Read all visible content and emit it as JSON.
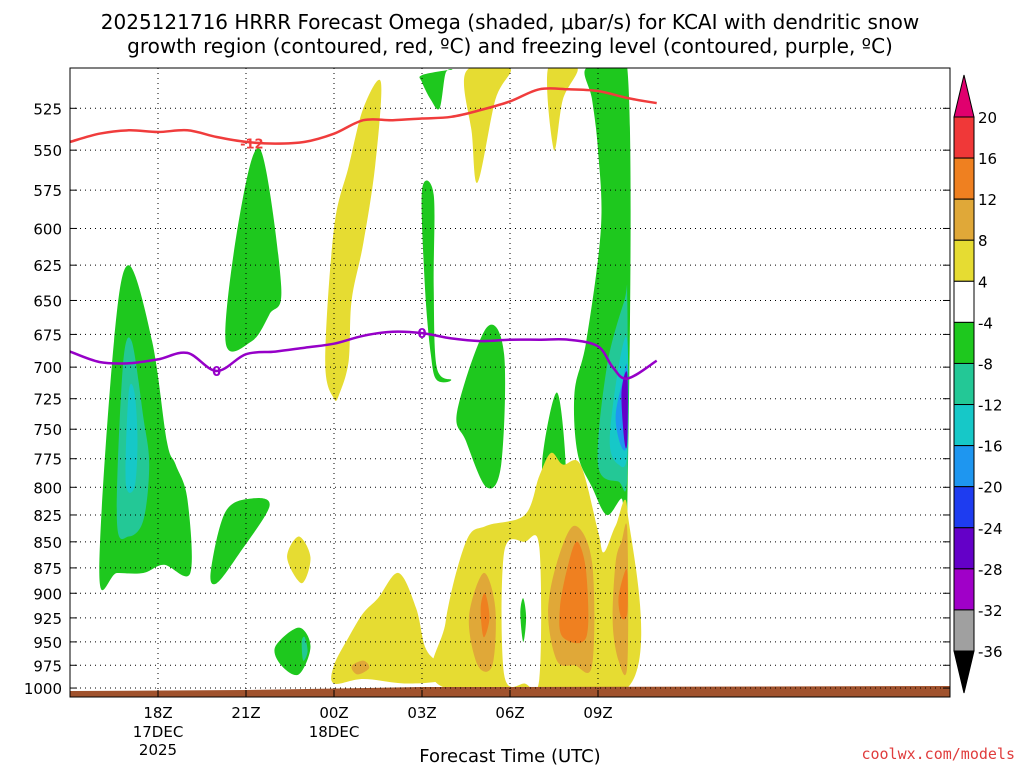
{
  "chart_data": {
    "type": "time-height contour",
    "title_line1": "2025121716 HRRR Forecast Omega (shaded, μbar/s) for KCAI with dendritic snow",
    "title_line2": "growth region (contoured, red, ºC) and freezing level (contoured, purple, ºC)",
    "xlabel": "Forecast Time (UTC)",
    "credit": "coolwx.com/models",
    "xlim_hours": [
      15.0,
      45.0
    ],
    "x_ticks": [
      {
        "hour": 18,
        "label": "18Z",
        "sub1": "17DEC",
        "sub2": "2025"
      },
      {
        "hour": 21,
        "label": "21Z",
        "sub1": "",
        "sub2": ""
      },
      {
        "hour": 24,
        "label": "00Z",
        "sub1": "18DEC",
        "sub2": ""
      },
      {
        "hour": 27,
        "label": "03Z",
        "sub1": "",
        "sub2": ""
      },
      {
        "hour": 30,
        "label": "06Z",
        "sub1": "",
        "sub2": ""
      },
      {
        "hour": 33,
        "label": "09Z",
        "sub1": "",
        "sub2": ""
      }
    ],
    "ylim_mb": [
      1010,
      502
    ],
    "y_ticks": [
      "525",
      "550",
      "575",
      "600",
      "625",
      "650",
      "675",
      "700",
      "725",
      "750",
      "775",
      "800",
      "825",
      "850",
      "875",
      "900",
      "925",
      "950",
      "975",
      "1000"
    ],
    "colorbar": {
      "levels": [
        "20",
        "16",
        "12",
        "8",
        "4",
        "-4",
        "-8",
        "-12",
        "-16",
        "-20",
        "-24",
        "-28",
        "-32",
        "-36"
      ],
      "colors": [
        "#e0006e",
        "#f03838",
        "#ef8020",
        "#e0a838",
        "#e6dc32",
        "#ffffff",
        "#1ec81e",
        "#23c896",
        "#16c8c8",
        "#1e96f0",
        "#1e3cf0",
        "#6400c8",
        "#a000c8",
        "#a0a0a0",
        "#000000"
      ],
      "top_arrow_color": "#e0006e",
      "bottom_arrow_color": "#000000"
    },
    "terrain_color": "#a0522d",
    "dgz_line": {
      "color": "#f03c3c",
      "label": "-12",
      "label_at": [
        21.2,
        546
      ],
      "points": [
        [
          15,
          545
        ],
        [
          16,
          540
        ],
        [
          17,
          538
        ],
        [
          18,
          539
        ],
        [
          19,
          538
        ],
        [
          20,
          542
        ],
        [
          21,
          545
        ],
        [
          22,
          546
        ],
        [
          23,
          545
        ],
        [
          24,
          540
        ],
        [
          25,
          532
        ],
        [
          26,
          532
        ],
        [
          27,
          531
        ],
        [
          28,
          530
        ],
        [
          29,
          526
        ],
        [
          30,
          521
        ],
        [
          31,
          514
        ],
        [
          32,
          514
        ],
        [
          33,
          515
        ],
        [
          34,
          519
        ],
        [
          35,
          522
        ]
      ]
    },
    "freezing_line": {
      "color": "#9600c8",
      "label": "0",
      "label2": "0",
      "label_at": [
        20.0,
        703
      ],
      "label2_at": [
        27.0,
        674
      ],
      "points": [
        [
          15,
          688
        ],
        [
          16,
          696
        ],
        [
          17,
          697
        ],
        [
          18,
          694
        ],
        [
          19,
          689
        ],
        [
          20,
          703
        ],
        [
          21,
          690
        ],
        [
          22,
          688
        ],
        [
          23,
          685
        ],
        [
          24,
          682
        ],
        [
          25,
          676
        ],
        [
          26,
          673
        ],
        [
          27,
          674
        ],
        [
          28,
          678
        ],
        [
          29,
          680
        ],
        [
          30,
          679
        ],
        [
          31,
          679
        ],
        [
          32,
          679
        ],
        [
          33,
          684
        ],
        [
          33.5,
          700
        ],
        [
          34,
          709
        ],
        [
          35,
          695
        ]
      ]
    },
    "omega_regions": [
      {
        "level": "-8",
        "color": "#1ec81e",
        "points": [
          [
            16.0,
            880
          ],
          [
            16.5,
            680
          ],
          [
            17.0,
            625
          ],
          [
            17.8,
            680
          ],
          [
            18.3,
            760
          ],
          [
            18.6,
            780
          ],
          [
            19.0,
            810
          ],
          [
            19.1,
            880
          ],
          [
            18.2,
            872
          ],
          [
            17.5,
            880
          ],
          [
            16.6,
            880
          ]
        ]
      },
      {
        "level": "-12",
        "color": "#23c896",
        "points": [
          [
            16.6,
            830
          ],
          [
            16.8,
            700
          ],
          [
            17.1,
            680
          ],
          [
            17.5,
            740
          ],
          [
            17.7,
            780
          ],
          [
            17.5,
            830
          ],
          [
            17.0,
            845
          ]
        ]
      },
      {
        "level": "-16",
        "color": "#16c8c8",
        "points": [
          [
            16.9,
            795
          ],
          [
            17.0,
            720
          ],
          [
            17.2,
            720
          ],
          [
            17.3,
            760
          ],
          [
            17.2,
            800
          ]
        ]
      },
      {
        "level": "-8",
        "color": "#1ec81e",
        "points": [
          [
            20.3,
            680
          ],
          [
            20.8,
            590
          ],
          [
            21.5,
            550
          ],
          [
            22.2,
            640
          ],
          [
            21.8,
            660
          ],
          [
            21.2,
            680
          ]
        ]
      },
      {
        "level": "-8",
        "color": "#1ec81e",
        "points": [
          [
            19.8,
            878
          ],
          [
            20.3,
            822
          ],
          [
            21.2,
            810
          ],
          [
            21.8,
            817
          ],
          [
            20.8,
            860
          ],
          [
            20.0,
            890
          ]
        ]
      },
      {
        "level": "-8",
        "color": "#1ec81e",
        "points": [
          [
            22.0,
            955
          ],
          [
            22.8,
            935
          ],
          [
            23.2,
            955
          ],
          [
            22.8,
            985
          ],
          [
            22.2,
            975
          ]
        ]
      },
      {
        "level": "-12",
        "color": "#23c896",
        "points": [
          [
            22.9,
            950
          ],
          [
            23.0,
            945
          ],
          [
            23.1,
            960
          ],
          [
            22.95,
            970
          ]
        ]
      },
      {
        "level": "-8",
        "color": "#1ec81e",
        "points": [
          [
            27.0,
            575
          ],
          [
            27.4,
            578
          ],
          [
            27.4,
            640
          ],
          [
            27.5,
            700
          ],
          [
            28.0,
            710
          ],
          [
            27.5,
            710
          ],
          [
            27.3,
            690
          ],
          [
            27.1,
            640
          ]
        ]
      },
      {
        "level": "-8",
        "color": "#1ec81e",
        "points": [
          [
            27.0,
            506
          ],
          [
            28.0,
            503
          ],
          [
            27.8,
            505
          ],
          [
            27.6,
            525
          ],
          [
            27.3,
            520
          ],
          [
            27.0,
            510
          ]
        ]
      },
      {
        "level": "-8",
        "color": "#1ec81e",
        "points": [
          [
            28.2,
            735
          ],
          [
            29.2,
            670
          ],
          [
            29.8,
            690
          ],
          [
            29.7,
            780
          ],
          [
            29.2,
            800
          ],
          [
            28.5,
            760
          ]
        ]
      },
      {
        "level": "-8",
        "color": "#1ec81e",
        "points": [
          [
            31.1,
            777
          ],
          [
            31.6,
            720
          ],
          [
            31.9,
            780
          ],
          [
            31.7,
            805
          ],
          [
            31.3,
            815
          ]
        ]
      },
      {
        "level": "-8",
        "color": "#1ec81e",
        "points": [
          [
            32.6,
            502
          ],
          [
            34.0,
            502
          ],
          [
            34.0,
            820
          ],
          [
            33.8,
            810
          ],
          [
            33.3,
            825
          ],
          [
            32.8,
            800
          ],
          [
            32.3,
            770
          ],
          [
            32.2,
            720
          ],
          [
            32.6,
            680
          ],
          [
            33.1,
            600
          ],
          [
            33.0,
            550
          ],
          [
            32.8,
            520
          ]
        ]
      },
      {
        "level": "-12",
        "color": "#23c896",
        "points": [
          [
            33.0,
            780
          ],
          [
            33.3,
            700
          ],
          [
            33.9,
            650
          ],
          [
            34.0,
            650
          ],
          [
            34.0,
            790
          ],
          [
            33.7,
            795
          ]
        ]
      },
      {
        "level": "-16",
        "color": "#16c8c8",
        "points": [
          [
            33.4,
            760
          ],
          [
            33.7,
            700
          ],
          [
            34.0,
            680
          ],
          [
            34.0,
            770
          ],
          [
            33.7,
            780
          ]
        ]
      },
      {
        "level": "-20",
        "color": "#1e96f0",
        "points": [
          [
            33.6,
            740
          ],
          [
            33.85,
            710
          ],
          [
            34.0,
            700
          ],
          [
            34.0,
            760
          ],
          [
            33.8,
            765
          ]
        ]
      },
      {
        "level": "-24",
        "color": "#6400c8",
        "points": [
          [
            33.8,
            720
          ],
          [
            34.0,
            705
          ],
          [
            34.0,
            760
          ],
          [
            33.9,
            760
          ]
        ]
      },
      {
        "level": "4",
        "color": "#e6dc32",
        "points": [
          [
            23.7,
            695
          ],
          [
            24.0,
            600
          ],
          [
            24.5,
            560
          ],
          [
            25.0,
            525
          ],
          [
            25.6,
            510
          ],
          [
            25.4,
            560
          ],
          [
            25.0,
            610
          ],
          [
            24.6,
            650
          ],
          [
            24.5,
            695
          ],
          [
            24.2,
            720
          ],
          [
            24.0,
            725
          ]
        ]
      },
      {
        "level": "4",
        "color": "#e6dc32",
        "points": [
          [
            28.5,
            504
          ],
          [
            30.0,
            502
          ],
          [
            29.5,
            520
          ],
          [
            28.9,
            570
          ],
          [
            28.7,
            540
          ]
        ]
      },
      {
        "level": "4",
        "color": "#e6dc32",
        "points": [
          [
            31.3,
            502
          ],
          [
            32.3,
            502
          ],
          [
            31.8,
            520
          ],
          [
            31.5,
            550
          ]
        ]
      },
      {
        "level": "4",
        "color": "#e6dc32",
        "points": [
          [
            22.4,
            865
          ],
          [
            22.8,
            845
          ],
          [
            23.2,
            865
          ],
          [
            22.9,
            890
          ]
        ]
      },
      {
        "level": "4",
        "color": "#e6dc32",
        "points": [
          [
            24.0,
            975
          ],
          [
            24.5,
            945
          ],
          [
            25.0,
            920
          ],
          [
            25.5,
            905
          ],
          [
            26.2,
            880
          ],
          [
            26.8,
            915
          ],
          [
            27.1,
            955
          ],
          [
            27.5,
            970
          ],
          [
            27.8,
            970
          ],
          [
            27.8,
            990
          ],
          [
            26.5,
            995
          ],
          [
            25.0,
            990
          ],
          [
            24.0,
            995
          ]
        ]
      },
      {
        "level": "4",
        "color": "#e6dc32",
        "points": [
          [
            27.8,
            930
          ],
          [
            28.5,
            850
          ],
          [
            29.2,
            835
          ],
          [
            30.5,
            825
          ],
          [
            31.0,
            790
          ],
          [
            31.4,
            770
          ],
          [
            31.8,
            780
          ],
          [
            32.4,
            780
          ],
          [
            33.0,
            840
          ],
          [
            33.2,
            860
          ],
          [
            33.6,
            835
          ],
          [
            34.0,
            820
          ],
          [
            34.0,
            1000
          ],
          [
            27.8,
            1000
          ]
        ]
      },
      {
        "level": "8",
        "color": "#e0a838",
        "points": [
          [
            28.6,
            925
          ],
          [
            29.1,
            880
          ],
          [
            29.5,
            915
          ],
          [
            29.4,
            975
          ],
          [
            28.9,
            975
          ]
        ]
      },
      {
        "level": "8",
        "color": "#e0a838",
        "points": [
          [
            31.3,
            920
          ],
          [
            31.6,
            870
          ],
          [
            32.2,
            835
          ],
          [
            32.8,
            870
          ],
          [
            32.8,
            975
          ],
          [
            32.2,
            975
          ],
          [
            31.6,
            970
          ]
        ]
      },
      {
        "level": "8",
        "color": "#e0a838",
        "points": [
          [
            33.6,
            870
          ],
          [
            33.8,
            850
          ],
          [
            34.0,
            840
          ],
          [
            34.0,
            975
          ],
          [
            33.7,
            970
          ],
          [
            33.5,
            930
          ]
        ]
      },
      {
        "level": "12",
        "color": "#ef8020",
        "points": [
          [
            31.7,
            915
          ],
          [
            32.0,
            870
          ],
          [
            32.3,
            850
          ],
          [
            32.6,
            880
          ],
          [
            32.6,
            945
          ],
          [
            31.8,
            945
          ]
        ]
      },
      {
        "level": "12",
        "color": "#ef8020",
        "points": [
          [
            33.7,
            905
          ],
          [
            33.9,
            880
          ],
          [
            34.0,
            880
          ],
          [
            34.0,
            920
          ],
          [
            33.8,
            925
          ]
        ]
      },
      {
        "level": "12",
        "color": "#ef8020",
        "points": [
          [
            29.0,
            915
          ],
          [
            29.15,
            900
          ],
          [
            29.3,
            925
          ],
          [
            29.1,
            945
          ]
        ]
      },
      {
        "level": "8",
        "color": "#e0a838",
        "points": [
          [
            24.6,
            976
          ],
          [
            25.0,
            970
          ],
          [
            25.2,
            978
          ],
          [
            24.8,
            985
          ]
        ]
      },
      {
        "level": "-4",
        "color": "#ffffff",
        "points": [
          [
            29.8,
            860
          ],
          [
            30.5,
            850
          ],
          [
            31.0,
            855
          ],
          [
            31.0,
            990
          ],
          [
            30.5,
            995
          ],
          [
            29.8,
            985
          ]
        ]
      },
      {
        "level": "-8",
        "color": "#1ec81e",
        "points": [
          [
            30.35,
            920
          ],
          [
            30.45,
            905
          ],
          [
            30.55,
            925
          ],
          [
            30.45,
            950
          ]
        ]
      }
    ]
  }
}
